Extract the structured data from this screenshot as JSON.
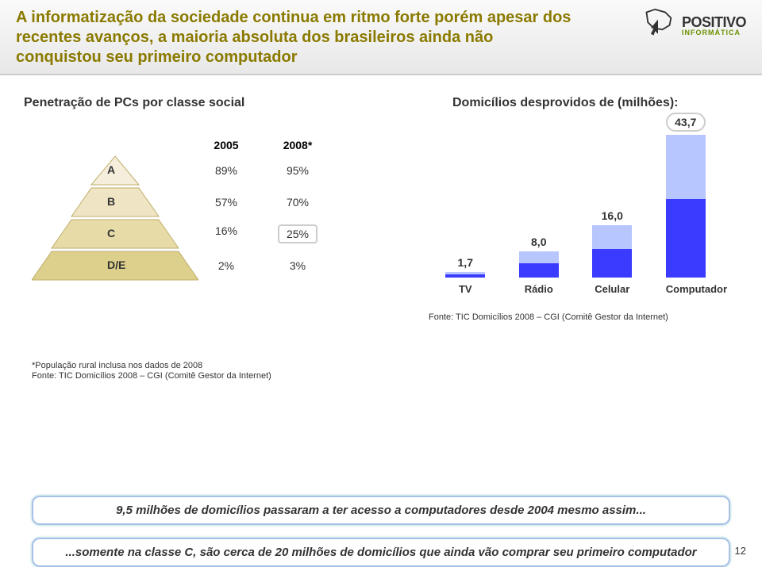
{
  "header": {
    "title": "A informatização da sociedade continua em ritmo forte porém apesar dos recentes avanços, a maioria absoluta dos brasileiros ainda não conquistou seu primeiro computador",
    "logo_name": "POSITIVO",
    "logo_sub": "INFORMÁTICA"
  },
  "left": {
    "section_title": "Penetração de PCs por classe social",
    "col1": "2005",
    "col2": "2008*",
    "rows": [
      {
        "label": "A",
        "v1": "89%",
        "v2": "95%"
      },
      {
        "label": "B",
        "v1": "57%",
        "v2": "70%"
      },
      {
        "label": "C",
        "v1": "16%",
        "v2": "25%"
      },
      {
        "label": "D/E",
        "v1": "2%",
        "v2": "3%"
      }
    ],
    "footnote1": "*População rural inclusa nos dados de 2008",
    "footnote2": "Fonte: TIC Domicílios 2008 – CGI (Comitê Gestor da Internet)"
  },
  "right": {
    "section_title": "Domicílios desprovidos de (milhões):",
    "chart": {
      "type": "bar",
      "ymax": 45,
      "bar_colors": {
        "light": "#b8c6ff",
        "dark": "#3b3bff"
      },
      "bars": [
        {
          "label": "TV",
          "value": "1,7",
          "num": 1.7
        },
        {
          "label": "Rádio",
          "value": "8,0",
          "num": 8.0
        },
        {
          "label": "Celular",
          "value": "16,0",
          "num": 16.0
        },
        {
          "label": "Computador",
          "value": "43,7",
          "num": 43.7
        }
      ]
    },
    "source": "Fonte: TIC Domicílios 2008 – CGI (Comitê Gestor da Internet)"
  },
  "callouts": {
    "c1": "9,5 milhões de domicílios passaram a ter acesso a computadores desde 2004 mesmo assim...",
    "c2": "...somente na classe C, são cerca de 20 milhões de domicílios que ainda vão comprar seu primeiro computador"
  },
  "page_number": "12",
  "pyramid_colors": [
    "#f5eedd",
    "#efe5c4",
    "#e7dba8",
    "#ddd08c"
  ]
}
